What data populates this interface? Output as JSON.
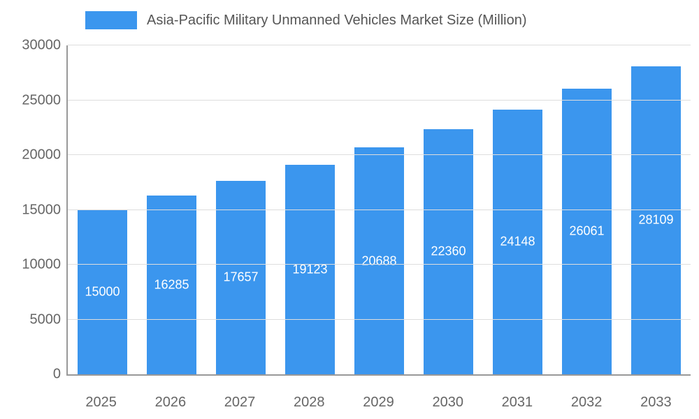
{
  "chart_data": {
    "type": "bar",
    "title": "Asia-Pacific Military Unmanned Vehicles Market Size (Million)",
    "categories": [
      "2025",
      "2026",
      "2027",
      "2028",
      "2029",
      "2030",
      "2031",
      "2032",
      "2033"
    ],
    "values": [
      15000,
      16285,
      17657,
      19123,
      20688,
      22360,
      24148,
      26061,
      28109
    ],
    "xlabel": "",
    "ylabel": "",
    "ylim": [
      0,
      30000
    ],
    "yticks": [
      0,
      5000,
      10000,
      15000,
      20000,
      25000,
      30000
    ],
    "grid": true,
    "legend_position": "top",
    "colors": {
      "bar": "#3b96ee",
      "bar_label": "#ffffff",
      "axis_line": "#999999",
      "gridline": "#dddddd",
      "tick_label": "#666666",
      "title_text": "#555555"
    }
  }
}
